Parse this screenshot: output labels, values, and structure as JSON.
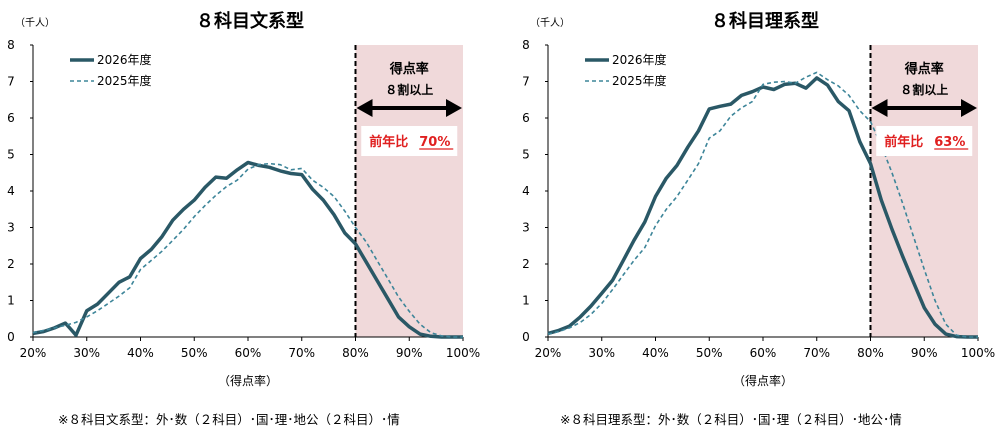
{
  "chart_data": [
    {
      "type": "line",
      "title": "８科目文系型",
      "unit": "（千人）",
      "xlabel": "（得点率）",
      "xlim": [
        20,
        100
      ],
      "ylim": [
        0,
        8
      ],
      "x_ticks": [
        20,
        30,
        40,
        50,
        60,
        70,
        80,
        90,
        100
      ],
      "x_tick_labels": [
        "20%",
        "30%",
        "40%",
        "50%",
        "60%",
        "70%",
        "80%",
        "90%",
        "100%"
      ],
      "y_ticks": [
        0,
        1,
        2,
        3,
        4,
        5,
        6,
        7,
        8
      ],
      "legend_position": "top-left",
      "colors": {
        "series_2026": "#2a5866",
        "series_2025": "#3d8599",
        "shade": "#f0d9da",
        "callout_red": "#e02020",
        "cutoff": "#000000"
      },
      "series": [
        {
          "name": "2026年度",
          "style": "solid",
          "x": [
            20,
            22,
            24,
            26,
            27,
            28,
            30,
            32,
            34,
            36,
            38,
            40,
            42,
            44,
            46,
            48,
            50,
            52,
            54,
            56,
            58,
            60,
            62,
            64,
            66,
            68,
            70,
            72,
            74,
            76,
            78,
            80,
            82,
            84,
            86,
            88,
            90,
            92,
            94,
            96,
            98,
            100
          ],
          "y": [
            0.1,
            0.15,
            0.25,
            0.38,
            0.22,
            0.05,
            0.72,
            0.9,
            1.2,
            1.5,
            1.65,
            2.15,
            2.4,
            2.75,
            3.2,
            3.5,
            3.75,
            4.1,
            4.38,
            4.35,
            4.58,
            4.78,
            4.7,
            4.65,
            4.55,
            4.48,
            4.45,
            4.05,
            3.75,
            3.35,
            2.85,
            2.55,
            2.05,
            1.55,
            1.05,
            0.55,
            0.28,
            0.08,
            0.02,
            0,
            0,
            0
          ]
        },
        {
          "name": "2025年度",
          "style": "dashed",
          "x": [
            20,
            22,
            24,
            26,
            28,
            30,
            32,
            34,
            36,
            38,
            40,
            42,
            44,
            46,
            48,
            50,
            52,
            54,
            56,
            58,
            60,
            62,
            64,
            66,
            68,
            70,
            72,
            74,
            76,
            78,
            80,
            82,
            84,
            86,
            88,
            90,
            92,
            94,
            96,
            98,
            100
          ],
          "y": [
            0.12,
            0.18,
            0.25,
            0.32,
            0.4,
            0.55,
            0.72,
            0.92,
            1.12,
            1.35,
            1.85,
            2.1,
            2.35,
            2.65,
            2.95,
            3.3,
            3.6,
            3.88,
            4.12,
            4.3,
            4.6,
            4.72,
            4.75,
            4.72,
            4.58,
            4.62,
            4.3,
            4.1,
            3.85,
            3.45,
            3.0,
            2.6,
            2.1,
            1.6,
            1.1,
            0.7,
            0.35,
            0.12,
            0.03,
            0,
            0
          ]
        }
      ],
      "cutoff_x": 80,
      "shade_range": [
        80,
        100
      ],
      "annotation_title": "得点率",
      "annotation_sub": "８割以上",
      "ratio_label": "前年比",
      "ratio_value": "70%"
    },
    {
      "type": "line",
      "title": "８科目理系型",
      "unit": "（千人）",
      "xlabel": "（得点率）",
      "xlim": [
        20,
        100
      ],
      "ylim": [
        0,
        8
      ],
      "x_ticks": [
        20,
        30,
        40,
        50,
        60,
        70,
        80,
        90,
        100
      ],
      "x_tick_labels": [
        "20%",
        "30%",
        "40%",
        "50%",
        "60%",
        "70%",
        "80%",
        "90%",
        "100%"
      ],
      "y_ticks": [
        0,
        1,
        2,
        3,
        4,
        5,
        6,
        7,
        8
      ],
      "legend_position": "top-left",
      "colors": {
        "series_2026": "#2a5866",
        "series_2025": "#3d8599",
        "shade": "#f0d9da",
        "callout_red": "#e02020",
        "cutoff": "#000000"
      },
      "series": [
        {
          "name": "2026年度",
          "style": "solid",
          "x": [
            20,
            22,
            24,
            26,
            28,
            30,
            32,
            34,
            36,
            38,
            40,
            42,
            44,
            46,
            48,
            50,
            52,
            54,
            56,
            58,
            60,
            62,
            64,
            66,
            68,
            70,
            72,
            74,
            76,
            78,
            80,
            82,
            84,
            86,
            88,
            90,
            92,
            94,
            96,
            98,
            100
          ],
          "y": [
            0.1,
            0.18,
            0.3,
            0.55,
            0.85,
            1.2,
            1.55,
            2.1,
            2.65,
            3.15,
            3.85,
            4.35,
            4.7,
            5.2,
            5.65,
            6.25,
            6.32,
            6.38,
            6.62,
            6.72,
            6.85,
            6.78,
            6.92,
            6.95,
            6.82,
            7.1,
            6.9,
            6.45,
            6.2,
            5.35,
            4.75,
            3.75,
            2.95,
            2.2,
            1.5,
            0.8,
            0.35,
            0.08,
            0.01,
            0,
            0
          ]
        },
        {
          "name": "2025年度",
          "style": "dashed",
          "x": [
            20,
            22,
            24,
            26,
            28,
            30,
            32,
            34,
            36,
            38,
            40,
            42,
            44,
            46,
            48,
            50,
            52,
            54,
            56,
            58,
            60,
            62,
            64,
            66,
            68,
            70,
            72,
            74,
            76,
            78,
            80,
            82,
            84,
            86,
            88,
            90,
            92,
            94,
            96,
            98,
            100
          ],
          "y": [
            0.08,
            0.15,
            0.25,
            0.4,
            0.62,
            0.92,
            1.3,
            1.7,
            2.1,
            2.45,
            3.05,
            3.5,
            3.85,
            4.3,
            4.75,
            5.45,
            5.65,
            6.05,
            6.28,
            6.45,
            6.92,
            6.98,
            7.0,
            6.95,
            7.12,
            7.25,
            7.05,
            6.88,
            6.62,
            6.2,
            5.9,
            5.25,
            4.5,
            3.65,
            2.75,
            1.85,
            1.0,
            0.35,
            0.05,
            0,
            0
          ]
        }
      ],
      "cutoff_x": 80,
      "shade_range": [
        80,
        100
      ],
      "annotation_title": "得点率",
      "annotation_sub": "８割以上",
      "ratio_label": "前年比",
      "ratio_value": "63%"
    }
  ],
  "notes": [
    "※８科目文系型：外･数（２科目）･国･理･地公（２科目）･情",
    "※８科目理系型：外･数（２科目）･国･理（２科目）･地公･情"
  ]
}
